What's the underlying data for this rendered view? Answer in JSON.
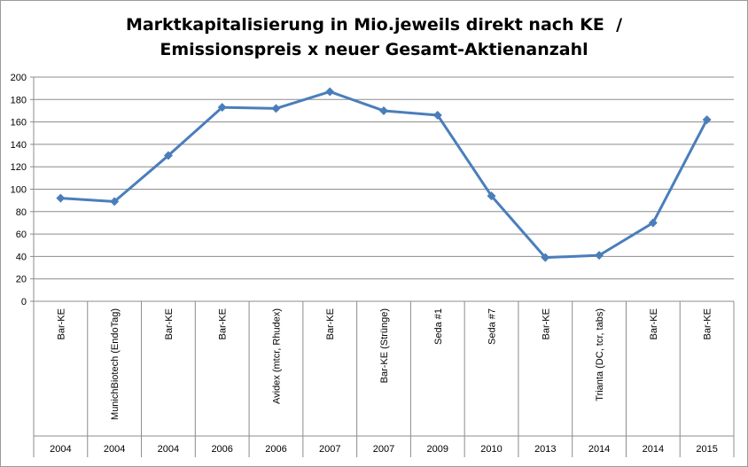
{
  "chart_data": {
    "type": "line",
    "title_line1": "Marktkapitalisierung in Mio.jeweils direkt nach KE  /",
    "title_line2": "Emissionspreis x neuer Gesamt-Aktienanzahl",
    "xlabel": "",
    "ylabel": "",
    "ylim": [
      0,
      200
    ],
    "ytick_step": 20,
    "yticks": [
      "0",
      "20",
      "40",
      "60",
      "80",
      "100",
      "120",
      "140",
      "160",
      "180",
      "200"
    ],
    "grid": true,
    "legend": "none",
    "line_color": "#4a7ebb",
    "categories": [
      {
        "label": "Bar-KE",
        "year": "2004"
      },
      {
        "label": "MunichBiotech (EndoTag)",
        "year": "2004"
      },
      {
        "label": "Bar-KE",
        "year": "2004"
      },
      {
        "label": "Bar-KE",
        "year": "2006"
      },
      {
        "label": "Avidex (mtcr, Rhudex)",
        "year": "2006"
      },
      {
        "label": "Bar-KE",
        "year": "2007"
      },
      {
        "label": "Bar-KE (Strünge)",
        "year": "2007"
      },
      {
        "label": "Seda #1",
        "year": "2009"
      },
      {
        "label": "Seda #7",
        "year": "2010"
      },
      {
        "label": "Bar-KE",
        "year": "2013"
      },
      {
        "label": "Trianta (DC, tcr, tabs)",
        "year": "2014"
      },
      {
        "label": "Bar-KE",
        "year": "2014"
      },
      {
        "label": "Bar-KE",
        "year": "2015"
      }
    ],
    "series": [
      {
        "values": [
          92,
          89,
          130,
          173,
          172,
          187,
          170,
          166,
          94,
          39,
          41,
          70,
          162
        ]
      }
    ]
  }
}
